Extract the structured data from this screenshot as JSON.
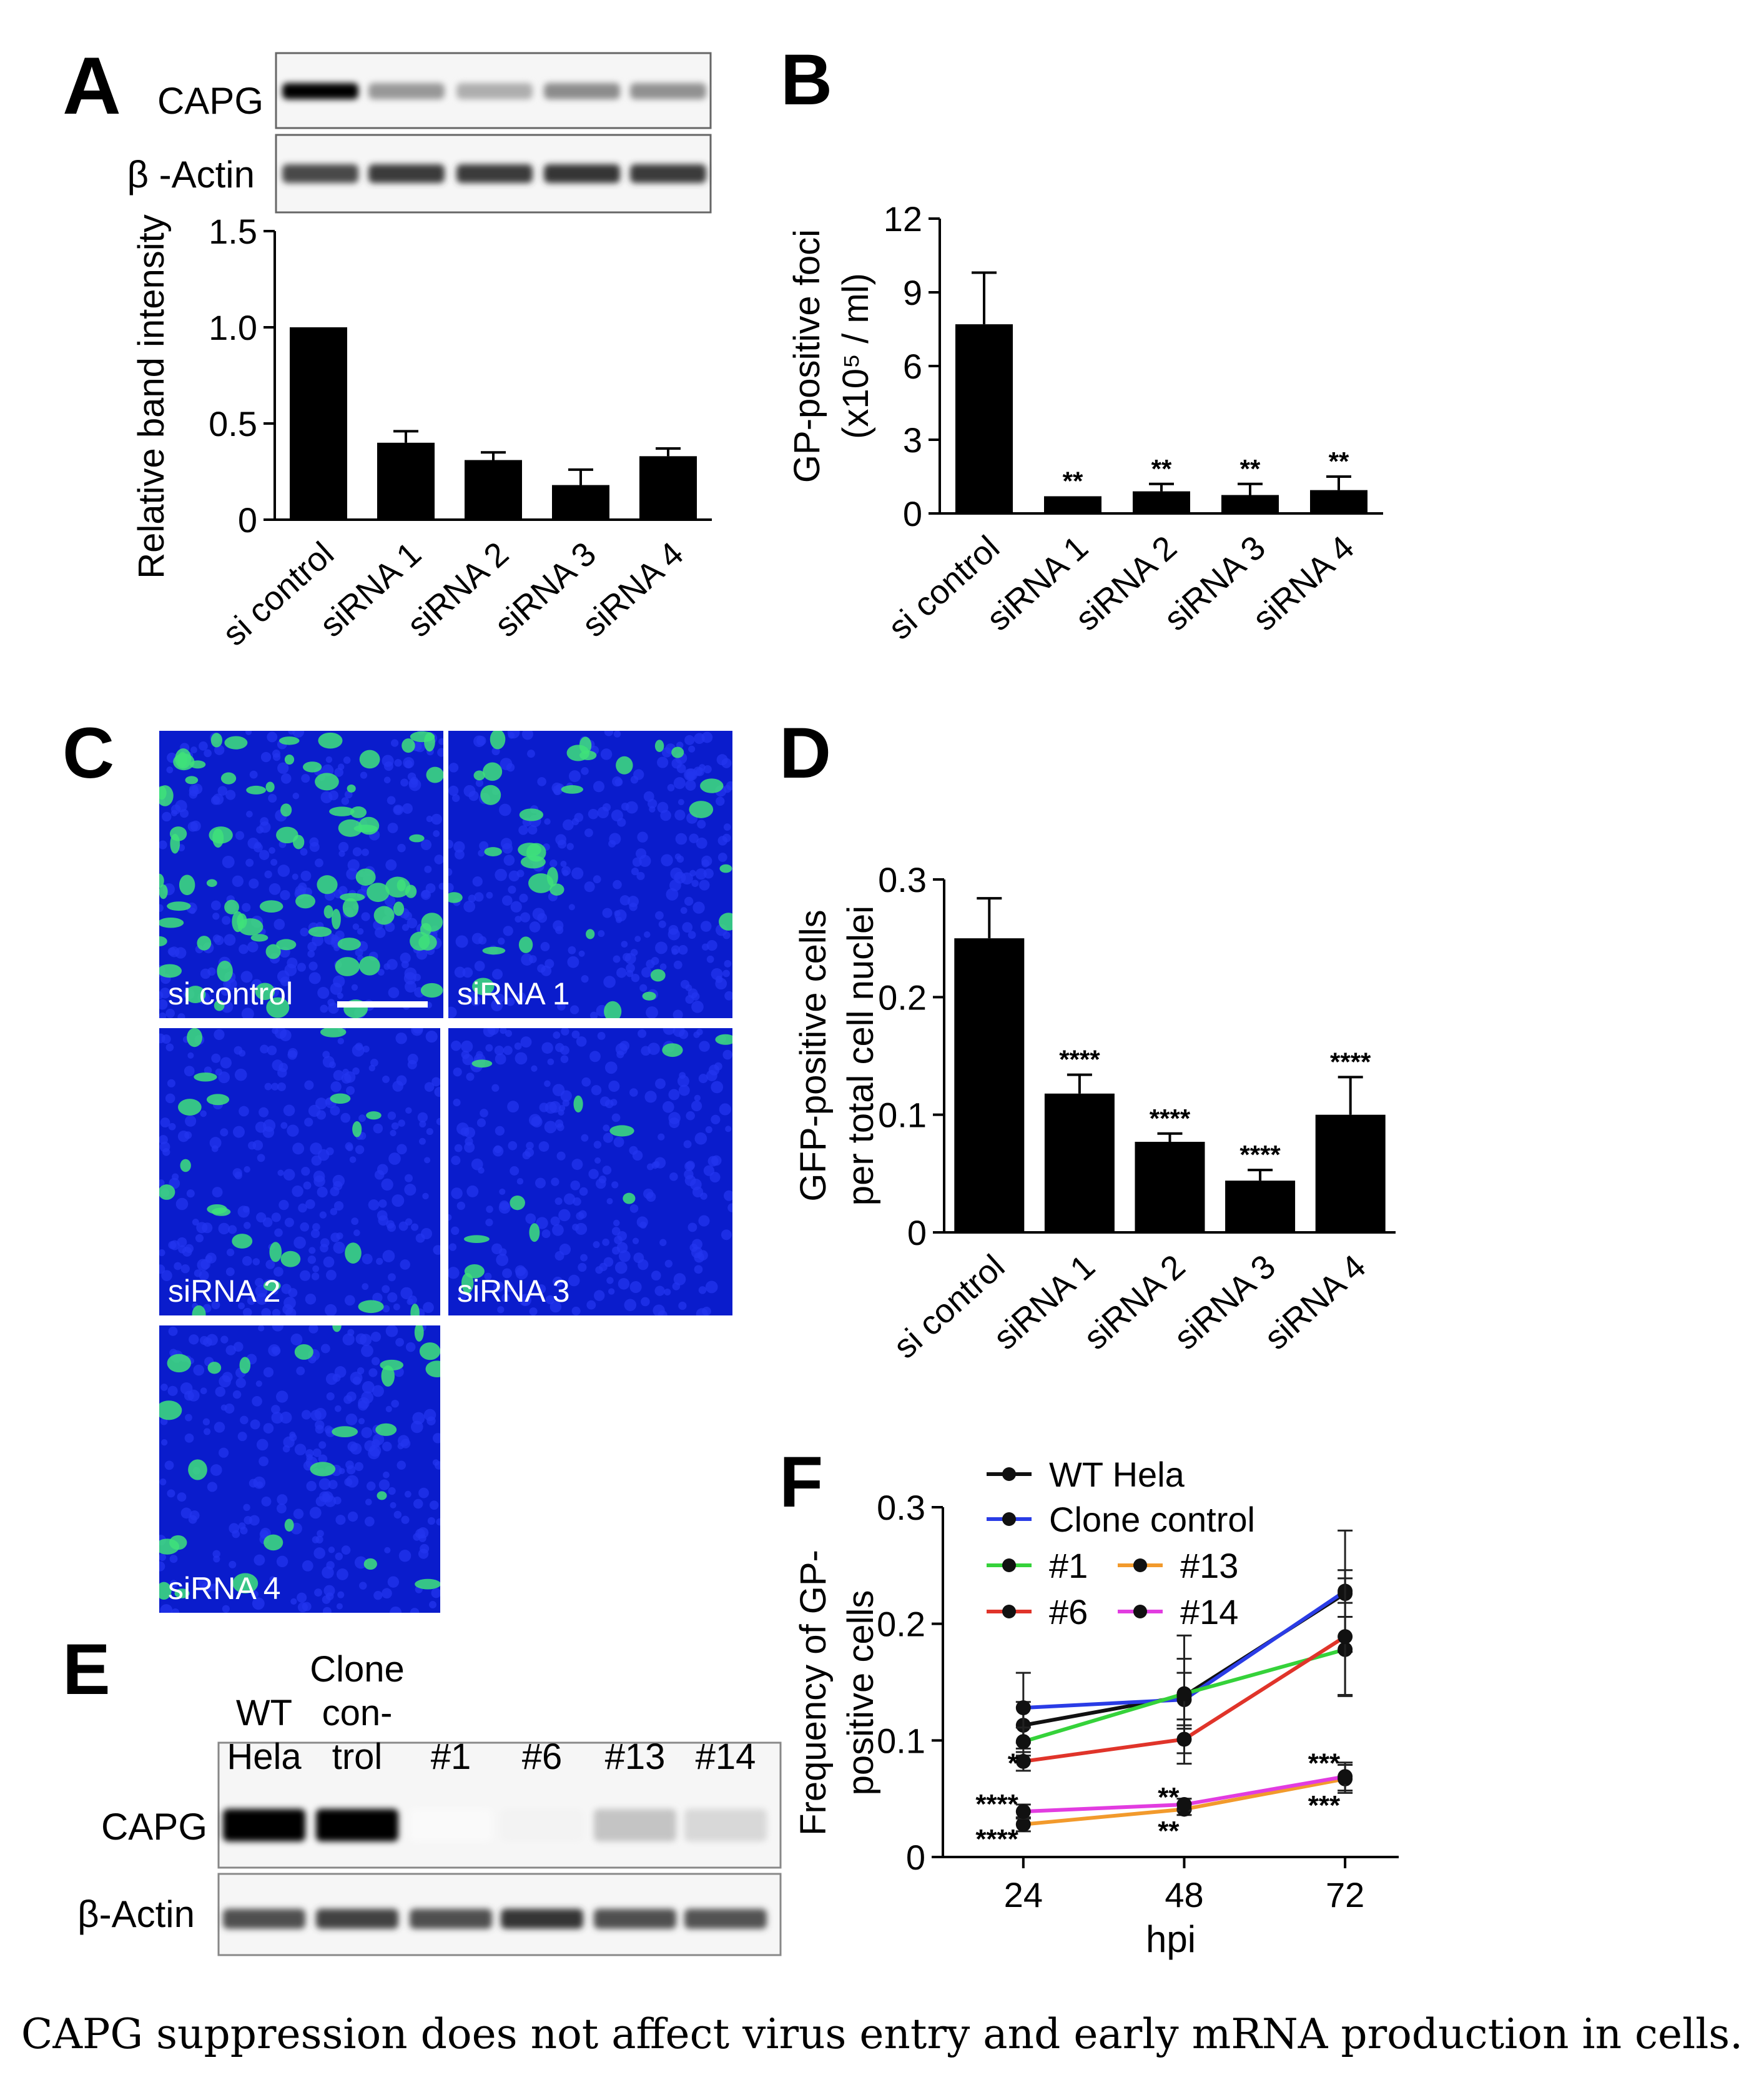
{
  "panels": {
    "A": "A",
    "B": "B",
    "C": "C",
    "D": "D",
    "E": "E",
    "F": "F"
  },
  "blot_a": {
    "rows": [
      {
        "label": "CAPG",
        "intensity": [
          1.0,
          0.4,
          0.31,
          0.45,
          0.43
        ]
      },
      {
        "label": "β -Actin",
        "intensity": [
          0.72,
          0.78,
          0.78,
          0.8,
          0.78
        ]
      }
    ]
  },
  "micrographs": {
    "labels": [
      "si control",
      "siRNA 1",
      "siRNA 2",
      "siRNA 3",
      "siRNA 4"
    ],
    "green_density": [
      0.9,
      0.35,
      0.22,
      0.12,
      0.28
    ],
    "colors": {
      "background": "#0a1ccc",
      "nuclei": "#2336f0",
      "cells": "#3ee27a"
    }
  },
  "blot_e": {
    "column_headers": [
      {
        "lines": [
          "WT",
          "Hela"
        ]
      },
      {
        "lines": [
          "Clone",
          "con-",
          "trol"
        ]
      },
      {
        "lines": [
          "#1"
        ]
      },
      {
        "lines": [
          "#6"
        ]
      },
      {
        "lines": [
          "#13"
        ]
      },
      {
        "lines": [
          "#14"
        ]
      }
    ],
    "rows": [
      {
        "label": "CAPG",
        "intensity": [
          1.0,
          1.0,
          0.0,
          0.03,
          0.22,
          0.14
        ]
      },
      {
        "label": "β-Actin",
        "intensity": [
          0.7,
          0.75,
          0.7,
          0.8,
          0.7,
          0.68
        ]
      }
    ]
  },
  "caption": "CAPG suppression does not affect virus entry and early mRNA production in cells.",
  "chart_data": [
    {
      "panel": "A",
      "type": "bar",
      "categories": [
        "si control",
        "siRNA 1",
        "siRNA 2",
        "siRNA 3",
        "siRNA 4"
      ],
      "values": [
        1.0,
        0.4,
        0.31,
        0.18,
        0.33
      ],
      "errors": [
        0,
        0.06,
        0.04,
        0.08,
        0.04
      ],
      "ylabel": "Relative band intensity",
      "ylim": [
        0,
        1.5
      ],
      "yticks": [
        0,
        0.5,
        1.0,
        1.5
      ],
      "ytick_labels": [
        "0",
        "0.5",
        "1.0",
        "1.5"
      ],
      "annotations": [
        "",
        "",
        "",
        "",
        ""
      ]
    },
    {
      "panel": "B",
      "type": "bar",
      "categories": [
        "si control",
        "siRNA 1",
        "siRNA 2",
        "siRNA 3",
        "siRNA 4"
      ],
      "values": [
        7.7,
        0.7,
        0.9,
        0.75,
        0.95
      ],
      "errors": [
        2.1,
        0.0,
        0.3,
        0.45,
        0.55
      ],
      "ylabel_lines": [
        "GP-positive foci",
        "(x10⁵ / ml)"
      ],
      "ylim": [
        0,
        12
      ],
      "yticks": [
        0,
        3,
        6,
        9,
        12
      ],
      "ytick_labels": [
        "0",
        "3",
        "6",
        "9",
        "12"
      ],
      "annotations": [
        "",
        "**",
        "**",
        "**",
        "**"
      ]
    },
    {
      "panel": "D",
      "type": "bar",
      "categories": [
        "si control",
        "siRNA 1",
        "siRNA 2",
        "siRNA 3",
        "siRNA 4"
      ],
      "values": [
        0.25,
        0.118,
        0.077,
        0.044,
        0.1
      ],
      "errors": [
        0.034,
        0.016,
        0.007,
        0.009,
        0.032
      ],
      "ylabel_lines": [
        "GFP-positive cells",
        "per total cell nuclei"
      ],
      "ylim": [
        0,
        0.3
      ],
      "yticks": [
        0,
        0.1,
        0.2,
        0.3
      ],
      "ytick_labels": [
        "0",
        "0.1",
        "0.2",
        "0.3"
      ],
      "annotations": [
        "",
        "****",
        "****",
        "****",
        "****"
      ]
    },
    {
      "panel": "F",
      "type": "line",
      "x": [
        24,
        48,
        72
      ],
      "xlabel": "hpi",
      "ylabel_lines": [
        "Frequency of GP-",
        "positive cells"
      ],
      "ylim": [
        0,
        0.3
      ],
      "xlim": [
        12,
        80
      ],
      "yticks": [
        0,
        0.1,
        0.2,
        0.3
      ],
      "ytick_labels": [
        "0",
        "0.1",
        "0.2",
        "0.3"
      ],
      "series": [
        {
          "name": "WT Hela",
          "color": "#111111",
          "values": [
            0.113,
            0.138,
            0.226
          ],
          "errors": [
            0.02,
            0.02,
            0.02
          ]
        },
        {
          "name": "Clone control",
          "color": "#2a3ce6",
          "values": [
            0.128,
            0.135,
            0.228
          ],
          "errors": [
            0.03,
            0.055,
            0.052
          ]
        },
        {
          "name": "#1",
          "color": "#35d23a",
          "values": [
            0.099,
            0.14,
            0.178
          ],
          "errors": [
            0.012,
            0.03,
            0.04
          ]
        },
        {
          "name": "#6",
          "color": "#e0342a",
          "values": [
            0.082,
            0.101,
            0.189
          ],
          "errors": [
            0.008,
            0.012,
            0.05
          ]
        },
        {
          "name": "#13",
          "color": "#f29a2c",
          "values": [
            0.028,
            0.041,
            0.067
          ],
          "errors": [
            0.006,
            0.005,
            0.012
          ]
        },
        {
          "name": "#14",
          "color": "#e23ce0",
          "values": [
            0.039,
            0.045,
            0.069
          ],
          "errors": [
            0.006,
            0.005,
            0.012
          ]
        }
      ],
      "annotations": [
        {
          "x": 24,
          "y": 0.08,
          "text": "*",
          "pos": "left"
        },
        {
          "x": 24,
          "y": 0.045,
          "text": "****",
          "pos": "left"
        },
        {
          "x": 24,
          "y": 0.015,
          "text": "****",
          "pos": "left"
        },
        {
          "x": 48,
          "y": 0.051,
          "text": "**",
          "pos": "left"
        },
        {
          "x": 48,
          "y": 0.022,
          "text": "**",
          "pos": "left"
        },
        {
          "x": 72,
          "y": 0.08,
          "text": "***",
          "pos": "left"
        },
        {
          "x": 72,
          "y": 0.044,
          "text": "***",
          "pos": "left"
        }
      ]
    }
  ]
}
